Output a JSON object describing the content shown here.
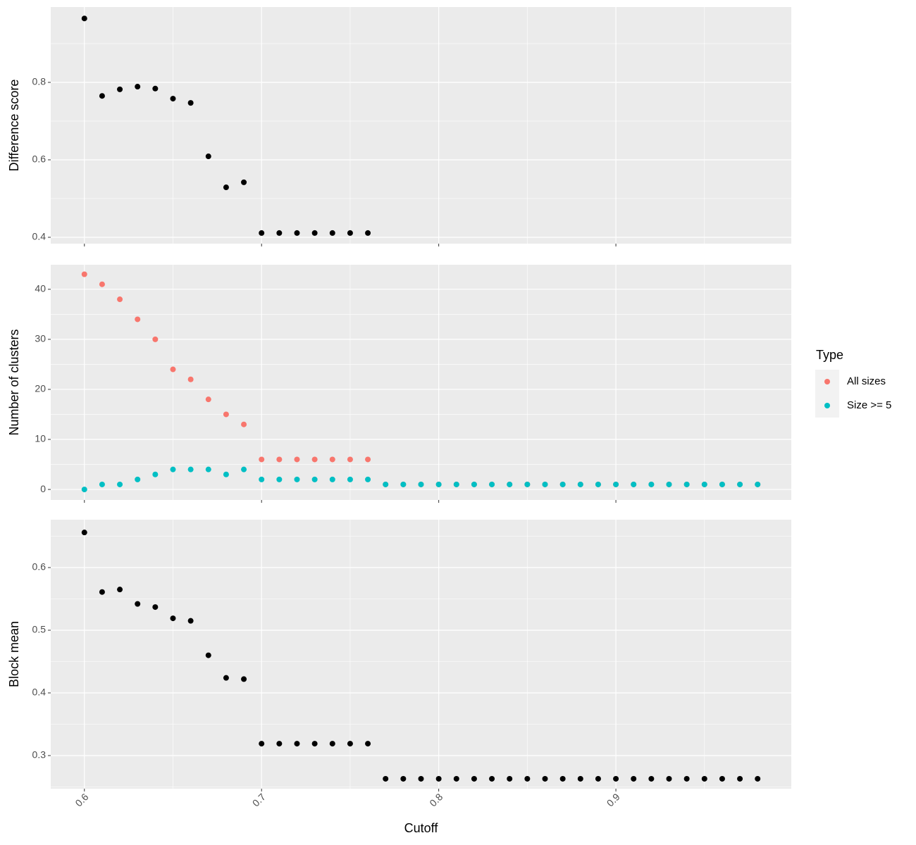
{
  "chart_data": [
    {
      "type": "scatter",
      "ylabel": "Difference score",
      "x": [
        0.6,
        0.61,
        0.62,
        0.63,
        0.64,
        0.65,
        0.66,
        0.67,
        0.68,
        0.69,
        0.7,
        0.71,
        0.72,
        0.73,
        0.74,
        0.75,
        0.76
      ],
      "series": [
        {
          "color": "#000000",
          "values": [
            0.965,
            0.765,
            0.782,
            0.789,
            0.784,
            0.758,
            0.747,
            0.609,
            0.529,
            0.542,
            0.411,
            0.411,
            0.411,
            0.411,
            0.411,
            0.411,
            0.411
          ]
        }
      ],
      "xlim": [
        0.581,
        0.999
      ],
      "xticks": [
        0.6,
        0.7,
        0.8,
        0.9
      ],
      "xminor": [
        0.65,
        0.75,
        0.85,
        0.95
      ],
      "ylim": [
        0.3836,
        0.9945
      ],
      "yticks": [
        0.4,
        0.6,
        0.8
      ],
      "yminor": [
        0.5,
        0.7,
        0.9
      ],
      "grid": true
    },
    {
      "type": "scatter",
      "ylabel": "Number of clusters",
      "legend_title": "Type",
      "legend": "right",
      "x": [
        0.6,
        0.61,
        0.62,
        0.63,
        0.64,
        0.65,
        0.66,
        0.67,
        0.68,
        0.69,
        0.7,
        0.71,
        0.72,
        0.73,
        0.74,
        0.75,
        0.76,
        0.77,
        0.78,
        0.79,
        0.8,
        0.81,
        0.82,
        0.83,
        0.84,
        0.85,
        0.86,
        0.87,
        0.88,
        0.89,
        0.9,
        0.91,
        0.92,
        0.93,
        0.94,
        0.95,
        0.96,
        0.97,
        0.98
      ],
      "series": [
        {
          "name": "All sizes",
          "color": "#F8766D",
          "values": [
            43,
            41,
            38,
            34,
            30,
            24,
            22,
            18,
            15,
            13,
            6,
            6,
            6,
            6,
            6,
            6,
            6,
            1,
            1,
            1,
            1,
            1,
            1,
            1,
            1,
            1,
            1,
            1,
            1,
            1,
            1,
            1,
            1,
            1,
            1,
            1,
            1,
            1,
            1
          ]
        },
        {
          "name": "Size >= 5",
          "color": "#00BFC4",
          "values": [
            0,
            1,
            1,
            2,
            3,
            4,
            4,
            4,
            3,
            4,
            2,
            2,
            2,
            2,
            2,
            2,
            2,
            1,
            1,
            1,
            1,
            1,
            1,
            1,
            1,
            1,
            1,
            1,
            1,
            1,
            1,
            1,
            1,
            1,
            1,
            1,
            1,
            1,
            1
          ]
        }
      ],
      "xlim": [
        0.581,
        0.999
      ],
      "xticks": [
        0.6,
        0.7,
        0.8,
        0.9
      ],
      "xminor": [
        0.65,
        0.75,
        0.85,
        0.95
      ],
      "ylim": [
        -2.1,
        44.9
      ],
      "yticks": [
        0,
        10,
        20,
        30,
        40
      ],
      "yminor": [
        5,
        15,
        25,
        35
      ],
      "grid": true
    },
    {
      "type": "scatter",
      "ylabel": "Block mean",
      "xlabel": "Cutoff",
      "x": [
        0.6,
        0.61,
        0.62,
        0.63,
        0.64,
        0.65,
        0.66,
        0.67,
        0.68,
        0.69,
        0.7,
        0.71,
        0.72,
        0.73,
        0.74,
        0.75,
        0.76,
        0.77,
        0.78,
        0.79,
        0.8,
        0.81,
        0.82,
        0.83,
        0.84,
        0.85,
        0.86,
        0.87,
        0.88,
        0.89,
        0.9,
        0.91,
        0.92,
        0.93,
        0.94,
        0.95,
        0.96,
        0.97,
        0.98
      ],
      "series": [
        {
          "color": "#000000",
          "values": [
            0.656,
            0.561,
            0.565,
            0.542,
            0.537,
            0.519,
            0.515,
            0.46,
            0.424,
            0.422,
            0.319,
            0.319,
            0.319,
            0.319,
            0.319,
            0.319,
            0.319,
            0.263,
            0.263,
            0.263,
            0.263,
            0.263,
            0.263,
            0.263,
            0.263,
            0.263,
            0.263,
            0.263,
            0.263,
            0.263,
            0.263,
            0.263,
            0.263,
            0.263,
            0.263,
            0.263,
            0.263,
            0.263,
            0.263
          ]
        }
      ],
      "xlim": [
        0.581,
        0.999
      ],
      "xticks": [
        0.6,
        0.7,
        0.8,
        0.9
      ],
      "xminor": [
        0.65,
        0.75,
        0.85,
        0.95
      ],
      "ylim": [
        0.2472,
        0.6764
      ],
      "yticks": [
        0.3,
        0.4,
        0.5,
        0.6
      ],
      "yminor": [
        0.25,
        0.35,
        0.45,
        0.55,
        0.65
      ],
      "grid": true
    }
  ]
}
